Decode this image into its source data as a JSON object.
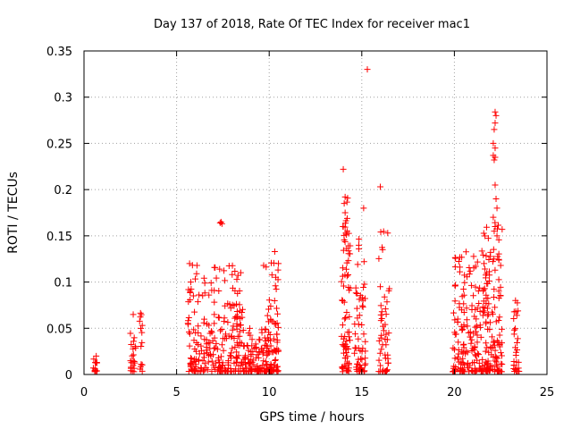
{
  "chart_data": {
    "type": "scatter",
    "title": "Day 137 of 2018, Rate Of TEC Index for receiver mac1",
    "xlabel": "GPS time / hours",
    "ylabel": "ROTI / TECUs",
    "xlim": [
      0,
      25
    ],
    "ylim": [
      0,
      0.35
    ],
    "x_ticks": [
      0,
      5,
      10,
      15,
      20,
      25
    ],
    "x_tick_labels": [
      "0",
      "5",
      "10",
      "15",
      "20",
      "25"
    ],
    "y_ticks": [
      0,
      0.05,
      0.1,
      0.15,
      0.2,
      0.25,
      0.3,
      0.35
    ],
    "y_tick_labels": [
      "0",
      "0.05",
      "0.1",
      "0.15",
      "0.2",
      "0.25",
      "0.3",
      "0.35"
    ],
    "grid": true,
    "marker": "plus",
    "marker_color": "#ff0000",
    "series": [
      {
        "name": "ROTI",
        "clusters": [
          {
            "x_range": [
              0.5,
              0.7
            ],
            "y_max": 0.02,
            "count": 14,
            "seed": 1
          },
          {
            "x_range": [
              2.5,
              2.8
            ],
            "y_max": 0.065,
            "count": 22,
            "seed": 2
          },
          {
            "x_range": [
              3.0,
              3.2
            ],
            "y_max": 0.072,
            "count": 14,
            "seed": 3
          },
          {
            "x_range": [
              5.6,
              6.8
            ],
            "y_max": 0.12,
            "count": 90,
            "seed": 4
          },
          {
            "x_range": [
              6.8,
              8.6
            ],
            "y_max": 0.12,
            "count": 150,
            "seed": 5
          },
          {
            "x_range": [
              8.6,
              9.8
            ],
            "y_max": 0.05,
            "count": 90,
            "seed": 6
          },
          {
            "x_range": [
              9.8,
              10.5
            ],
            "y_max": 0.133,
            "count": 90,
            "seed": 7
          },
          {
            "x_range": [
              13.9,
              14.4
            ],
            "y_max": 0.195,
            "count": 80,
            "seed": 8
          },
          {
            "x_range": [
              14.6,
              15.2
            ],
            "y_max": 0.15,
            "count": 60,
            "seed": 9
          },
          {
            "x_range": [
              15.9,
              16.5
            ],
            "y_max": 0.155,
            "count": 50,
            "seed": 10
          },
          {
            "x_range": [
              19.9,
              21.5
            ],
            "y_max": 0.135,
            "count": 150,
            "seed": 11
          },
          {
            "x_range": [
              21.5,
              22.6
            ],
            "y_max": 0.165,
            "count": 140,
            "seed": 12
          },
          {
            "x_range": [
              23.2,
              23.5
            ],
            "y_max": 0.082,
            "count": 30,
            "seed": 13
          }
        ],
        "points": [
          [
            7.4,
            0.165
          ],
          [
            7.45,
            0.163
          ],
          [
            7.35,
            0.164
          ],
          [
            14.0,
            0.222
          ],
          [
            14.1,
            0.192
          ],
          [
            14.05,
            0.185
          ],
          [
            15.3,
            0.33
          ],
          [
            16.0,
            0.203
          ],
          [
            15.1,
            0.18
          ],
          [
            22.2,
            0.284
          ],
          [
            22.25,
            0.28
          ],
          [
            22.2,
            0.272
          ],
          [
            22.15,
            0.265
          ],
          [
            22.1,
            0.25
          ],
          [
            22.2,
            0.245
          ],
          [
            22.1,
            0.237
          ],
          [
            22.2,
            0.235
          ],
          [
            22.15,
            0.232
          ],
          [
            22.2,
            0.205
          ],
          [
            22.25,
            0.19
          ],
          [
            22.3,
            0.18
          ],
          [
            22.1,
            0.17
          ],
          [
            22.2,
            0.16
          ],
          [
            22.15,
            0.155
          ],
          [
            22.3,
            0.15
          ],
          [
            9.7,
            0.118
          ],
          [
            10.3,
            0.133
          ],
          [
            10.5,
            0.12
          ],
          [
            5.7,
            0.12
          ],
          [
            6.1,
            0.118
          ],
          [
            8.0,
            0.108
          ],
          [
            21.6,
            0.12
          ],
          [
            22.5,
            0.118
          ],
          [
            23.3,
            0.08
          ],
          [
            16.4,
            0.153
          ],
          [
            14.1,
            0.175
          ],
          [
            14.0,
            0.16
          ]
        ]
      }
    ]
  }
}
